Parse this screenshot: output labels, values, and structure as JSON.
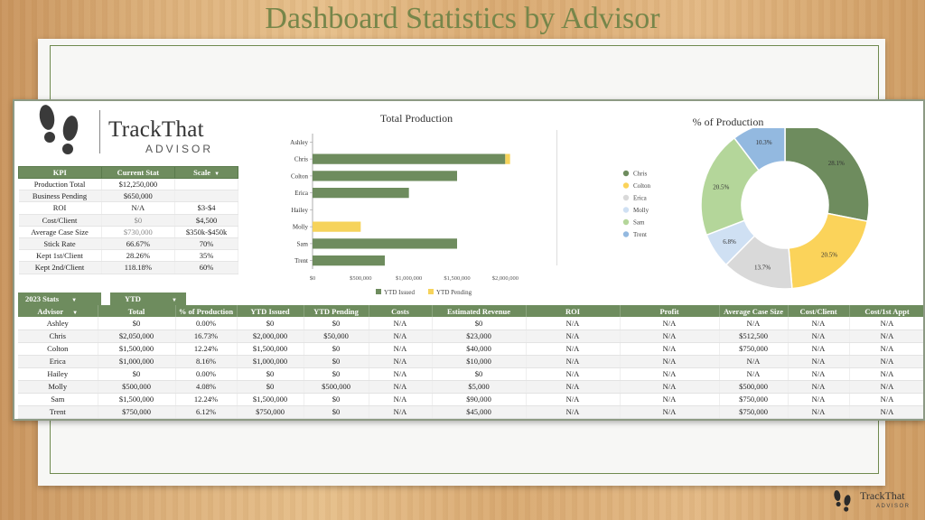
{
  "slide": {
    "title": "Dashboard Statistics by Advisor"
  },
  "logo": {
    "line1": "TrackThat",
    "line2": "ADVISOR"
  },
  "kpi": {
    "headers": [
      "KPI",
      "Current Stat",
      "Scale"
    ],
    "rows": [
      [
        "Production Total",
        "$12,250,000",
        ""
      ],
      [
        "Business Pending",
        "$650,000",
        ""
      ],
      [
        "ROI",
        "N/A",
        "$3-$4"
      ],
      [
        "Cost/Client",
        "$0",
        "$4,500"
      ],
      [
        "Average Case Size",
        "$730,000",
        "$350k-$450k"
      ],
      [
        "Stick Rate",
        "66.67%",
        "70%"
      ],
      [
        "Kept 1st/Client",
        "28.26%",
        "35%"
      ],
      [
        "Kept 2nd/Client",
        "118.18%",
        "60%"
      ]
    ]
  },
  "filters": {
    "year_label": "2023 Stats",
    "period_label": "YTD"
  },
  "advisor_table": {
    "headers": [
      "Advisor",
      "Total",
      "% of Production",
      "YTD Issued",
      "YTD Pending",
      "Costs",
      "Estimated Revenue",
      "ROI",
      "Profit",
      "Average Case Size",
      "Cost/Client",
      "Cost/1st Appt"
    ],
    "rows": [
      [
        "Ashley",
        "$0",
        "0.00%",
        "$0",
        "$0",
        "N/A",
        "$0",
        "N/A",
        "N/A",
        "N/A",
        "N/A",
        "N/A"
      ],
      [
        "Chris",
        "$2,050,000",
        "16.73%",
        "$2,000,000",
        "$50,000",
        "N/A",
        "$23,000",
        "N/A",
        "N/A",
        "$512,500",
        "N/A",
        "N/A"
      ],
      [
        "Colton",
        "$1,500,000",
        "12.24%",
        "$1,500,000",
        "$0",
        "N/A",
        "$40,000",
        "N/A",
        "N/A",
        "$750,000",
        "N/A",
        "N/A"
      ],
      [
        "Erica",
        "$1,000,000",
        "8.16%",
        "$1,000,000",
        "$0",
        "N/A",
        "$10,000",
        "N/A",
        "N/A",
        "N/A",
        "N/A",
        "N/A"
      ],
      [
        "Hailey",
        "$0",
        "0.00%",
        "$0",
        "$0",
        "N/A",
        "$0",
        "N/A",
        "N/A",
        "N/A",
        "N/A",
        "N/A"
      ],
      [
        "Molly",
        "$500,000",
        "4.08%",
        "$0",
        "$500,000",
        "N/A",
        "$5,000",
        "N/A",
        "N/A",
        "$500,000",
        "N/A",
        "N/A"
      ],
      [
        "Sam",
        "$1,500,000",
        "12.24%",
        "$1,500,000",
        "$0",
        "N/A",
        "$90,000",
        "N/A",
        "N/A",
        "$750,000",
        "N/A",
        "N/A"
      ],
      [
        "Trent",
        "$750,000",
        "6.12%",
        "$750,000",
        "$0",
        "N/A",
        "$45,000",
        "N/A",
        "N/A",
        "$750,000",
        "N/A",
        "N/A"
      ]
    ]
  },
  "chart_data": [
    {
      "type": "bar",
      "orientation": "horizontal",
      "stacked": true,
      "title": "Total Production",
      "categories": [
        "Ashley",
        "Chris",
        "Colton",
        "Erica",
        "Hailey",
        "Molly",
        "Sam",
        "Trent"
      ],
      "series": [
        {
          "name": "YTD Issued",
          "color": "#6e8c5e",
          "values": [
            0,
            2000000,
            1500000,
            1000000,
            0,
            0,
            1500000,
            750000
          ]
        },
        {
          "name": "YTD Pending",
          "color": "#f6d35b",
          "values": [
            0,
            50000,
            0,
            0,
            0,
            500000,
            0,
            0
          ]
        }
      ],
      "xticks": [
        "$0",
        "$500,000",
        "$1,000,000",
        "$1,500,000",
        "$2,000,000"
      ],
      "xlim": [
        0,
        2250000
      ],
      "legend": "bottom"
    },
    {
      "type": "pie",
      "donut": true,
      "title": "% of Production",
      "slices": [
        {
          "name": "Chris",
          "value": 28.1,
          "label": "28.1%",
          "color": "#6e8c5e"
        },
        {
          "name": "Colton",
          "value": 20.5,
          "label": "20.5%",
          "color": "#fbd35a"
        },
        {
          "name": "Erica",
          "value": 13.7,
          "label": "13.7%",
          "color": "#d9d9d9"
        },
        {
          "name": "Molly",
          "value": 6.8,
          "label": "6.8%",
          "color": "#cfe0f3"
        },
        {
          "name": "Sam",
          "value": 20.5,
          "label": "20.5%",
          "color": "#b4d69a"
        },
        {
          "name": "Trent",
          "value": 10.3,
          "label": "10.3%",
          "color": "#93b9e0"
        }
      ],
      "legend": "left"
    }
  ],
  "corner_logo": {
    "line1": "TrackThat",
    "line2": "ADVISOR"
  }
}
